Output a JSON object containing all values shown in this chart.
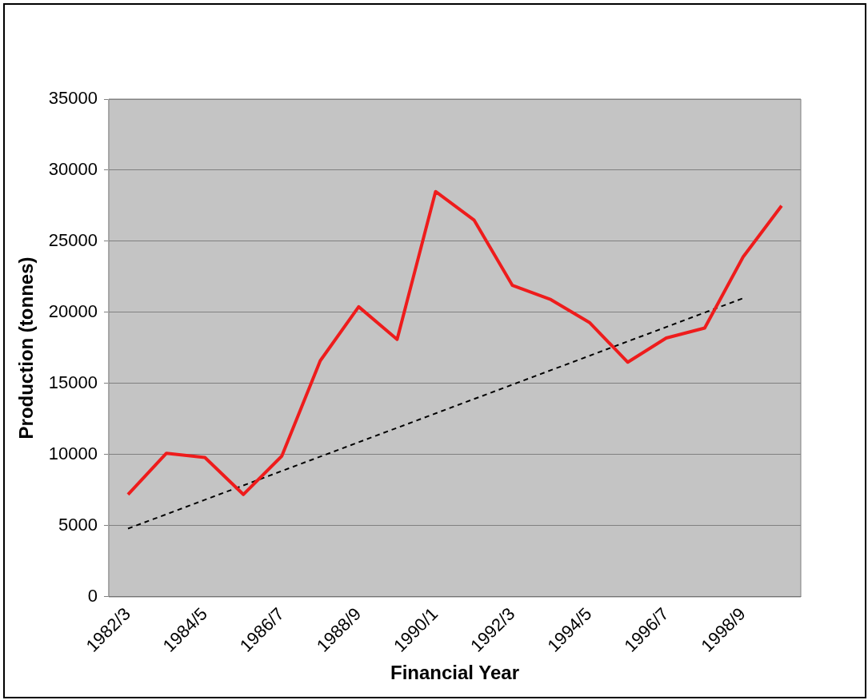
{
  "chart_data": {
    "type": "line",
    "xlabel": "Financial Year",
    "ylabel": "Production (tonnes)",
    "categories": [
      "1982/3",
      null,
      "1984/5",
      null,
      "1986/7",
      null,
      "1988/9",
      null,
      "1990/1",
      null,
      "1992/3",
      null,
      "1994/5",
      null,
      "1996/7",
      null,
      "1998/9",
      null
    ],
    "series": [
      {
        "color": "#ee1c1c",
        "values": [
          7200,
          10100,
          9800,
          7200,
          9900,
          16600,
          20400,
          18100,
          28500,
          26500,
          21900,
          20900,
          19300,
          16500,
          18200,
          18900,
          23900,
          27500
        ]
      },
      {
        "type": "line",
        "color": "#000000",
        "line_style": "dashed",
        "x": [
          "1982/3",
          "1998/9"
        ],
        "values": [
          4800,
          21000
        ]
      }
    ],
    "ylim": [
      0,
      35000
    ],
    "yticks": [
      0,
      5000,
      10000,
      15000,
      20000,
      25000,
      30000,
      35000
    ],
    "grid": "y",
    "legend": false,
    "marker": "none"
  }
}
